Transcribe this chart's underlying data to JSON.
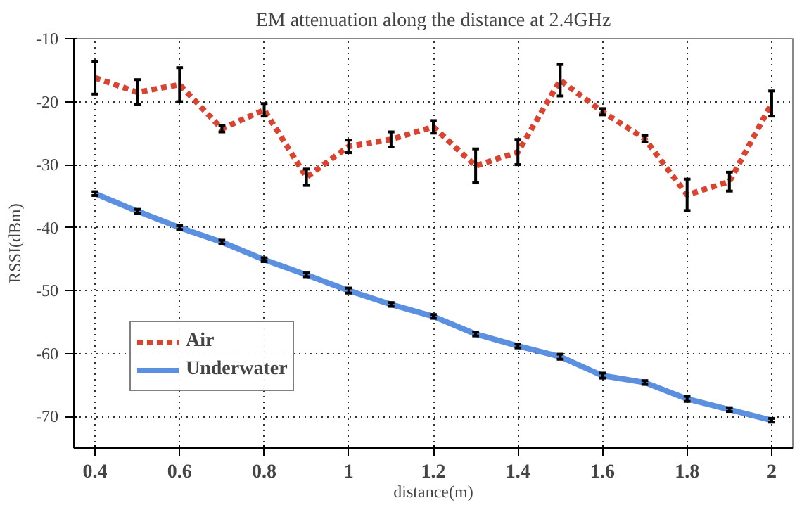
{
  "chart_data": {
    "type": "line",
    "title": "EM attenuation along the distance at 2.4GHz",
    "xlabel": "distance(m)",
    "ylabel": "RSSI(dBm)",
    "x": [
      0.4,
      0.5,
      0.6,
      0.7,
      0.8,
      0.9,
      1.0,
      1.1,
      1.2,
      1.3,
      1.4,
      1.5,
      1.6,
      1.7,
      1.8,
      1.9,
      2.0
    ],
    "series": [
      {
        "name": "Air",
        "color": "#d9432f",
        "line_style": "dashed",
        "values": [
          -16.2,
          -18.5,
          -17.3,
          -24.3,
          -21.3,
          -32,
          -27.1,
          -26,
          -24,
          -30.2,
          -28,
          -16.6,
          -21.6,
          -25.9,
          -34.8,
          -32.7,
          -20.3
        ],
        "errors": [
          2.6,
          2,
          2.7,
          0.5,
          1,
          1.3,
          1,
          1.2,
          1,
          2.7,
          2,
          2.5,
          0.5,
          0.5,
          2.5,
          1.5,
          2
        ]
      },
      {
        "name": "Underwater",
        "color": "#5b8fe0",
        "line_style": "solid",
        "values": [
          -34.6,
          -37.4,
          -40,
          -42.3,
          -45.1,
          -47.5,
          -50,
          -52.2,
          -54.1,
          -56.9,
          -58.8,
          -60.5,
          -63.5,
          -64.6,
          -67.2,
          -68.9,
          -70.6
        ],
        "errors": [
          0.3,
          0.3,
          0.3,
          0.3,
          0.3,
          0.3,
          0.4,
          0.3,
          0.3,
          0.3,
          0.3,
          0.4,
          0.4,
          0.3,
          0.4,
          0.3,
          0.3
        ]
      }
    ],
    "xlim": [
      0.35,
      2.05
    ],
    "ylim": [
      -75,
      -10
    ],
    "xticks": [
      0.4,
      0.6,
      0.8,
      1,
      1.2,
      1.4,
      1.6,
      1.8,
      2
    ],
    "yticks": [
      -70,
      -60,
      -50,
      -40,
      -30,
      -20,
      -10
    ],
    "grid": true,
    "legend": "bottom left"
  }
}
